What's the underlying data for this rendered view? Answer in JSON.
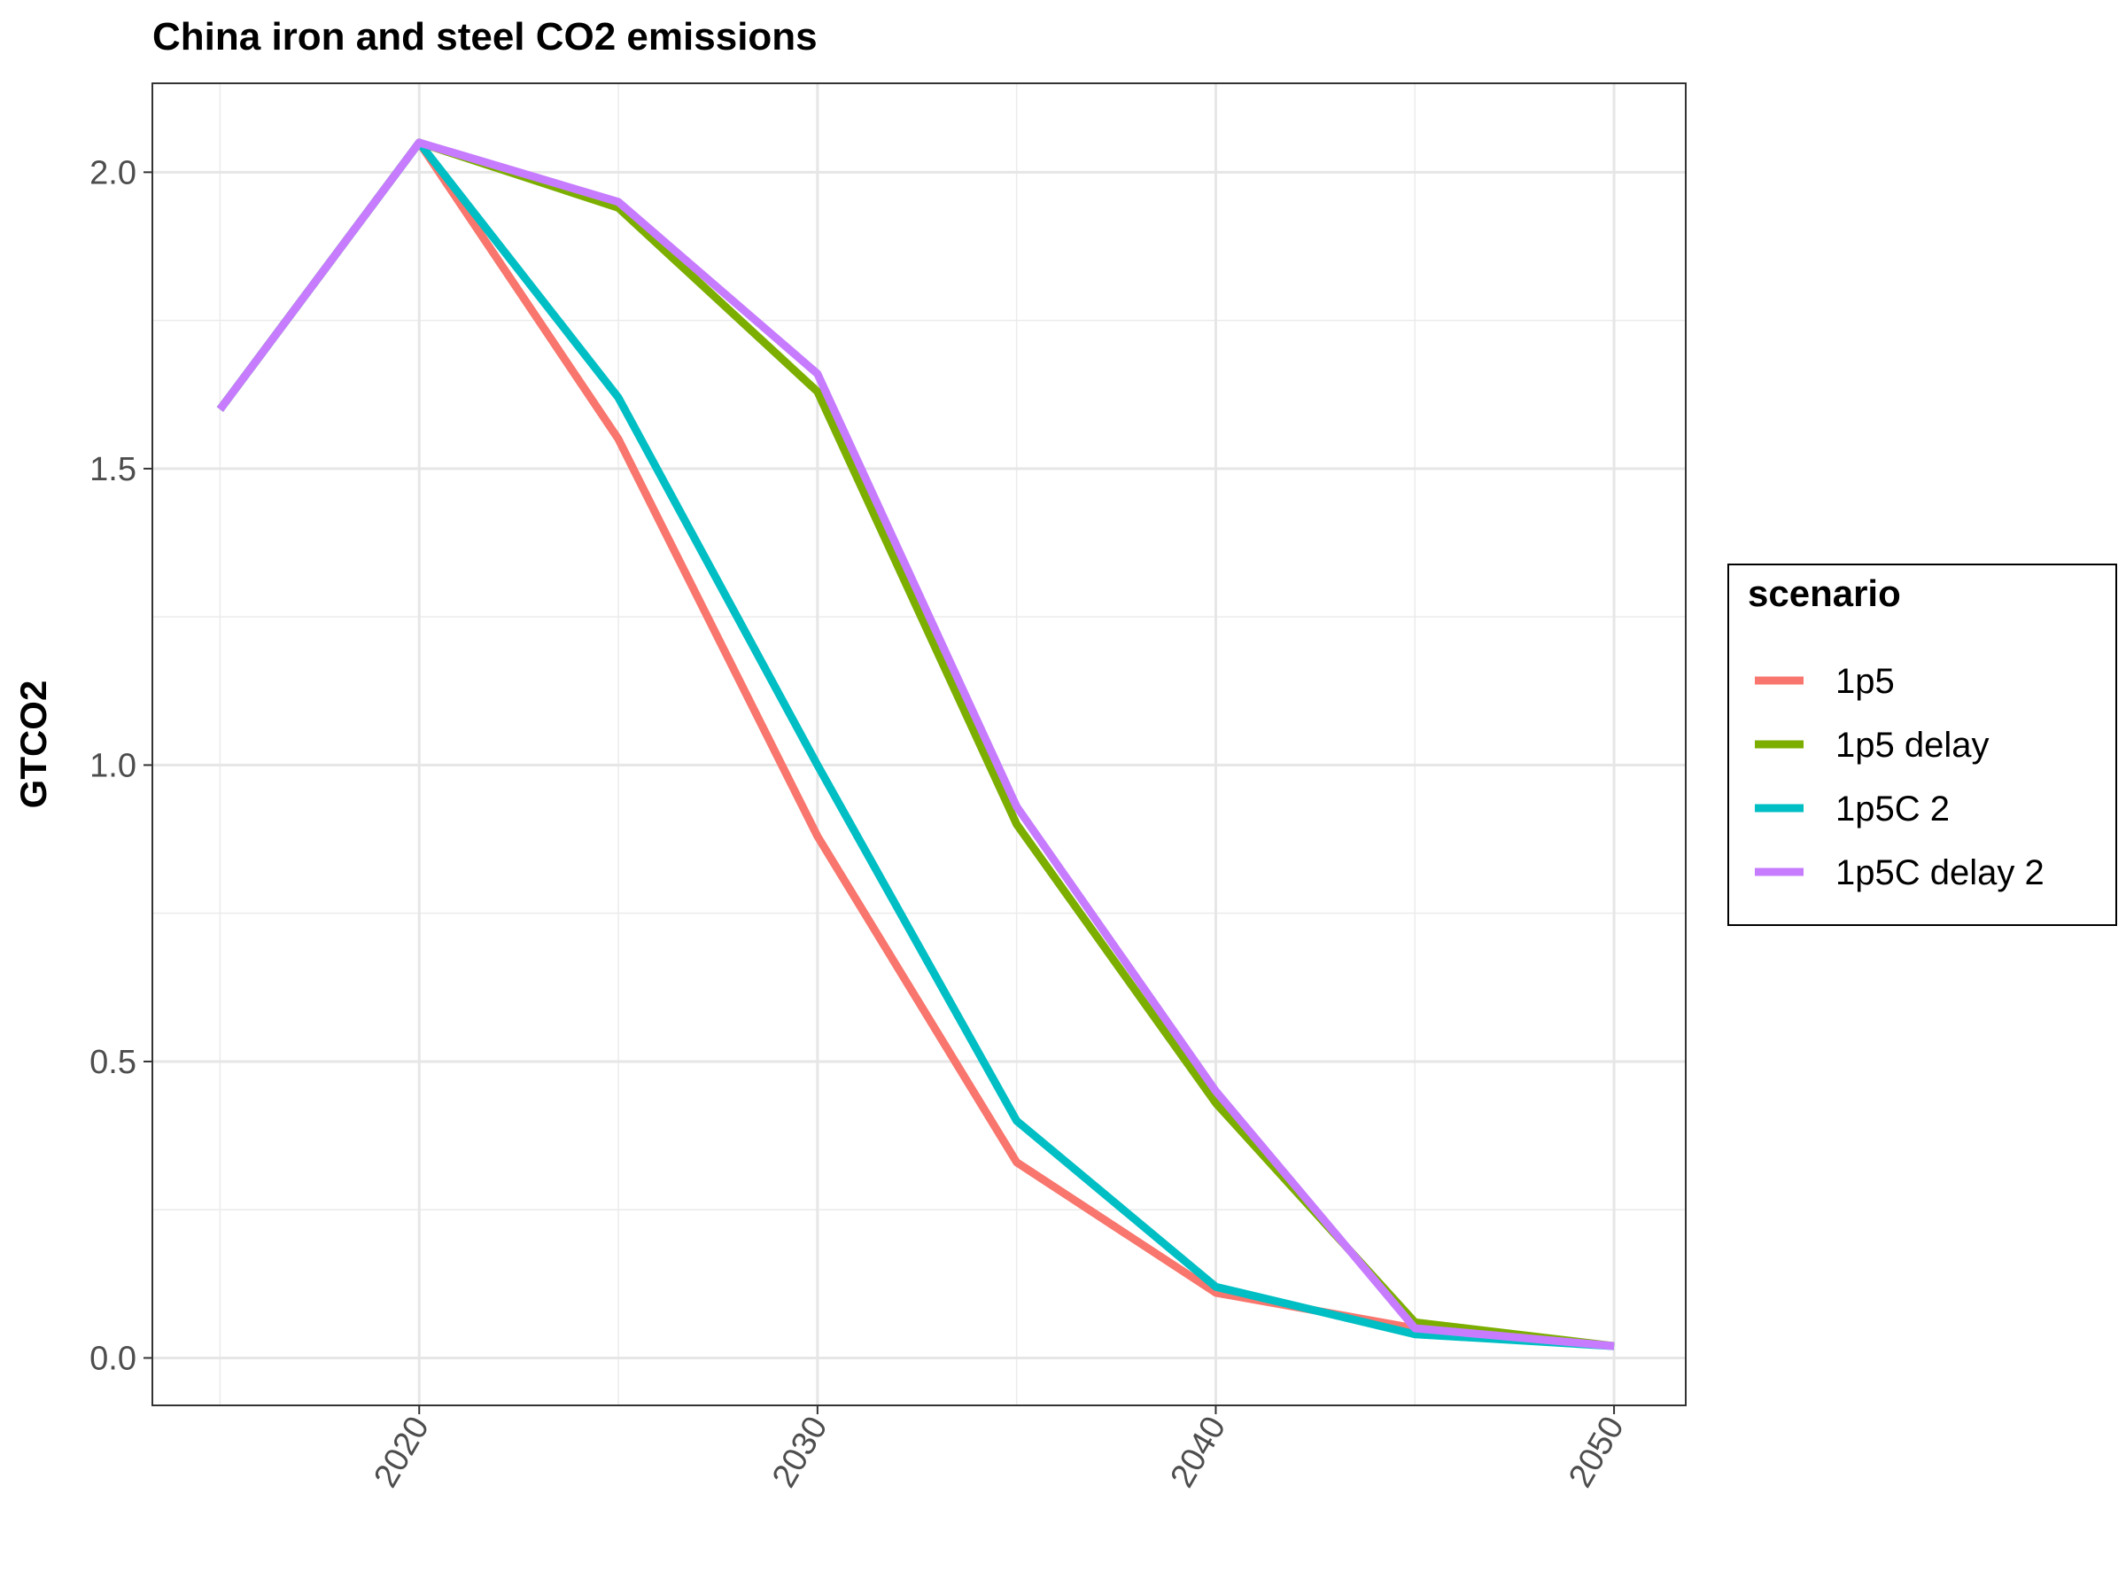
{
  "chart_data": {
    "type": "line",
    "title": "China iron and steel CO2 emissions",
    "xlabel": "",
    "ylabel": "GTCO2",
    "x": [
      2015,
      2020,
      2025,
      2030,
      2035,
      2040,
      2045,
      2050
    ],
    "xlim": [
      2013.3,
      2051.8
    ],
    "ylim": [
      -0.08,
      2.15
    ],
    "x_ticks": [
      2020,
      2030,
      2040,
      2050
    ],
    "y_ticks": [
      0.0,
      0.5,
      1.0,
      1.5,
      2.0
    ],
    "y_tick_labels": [
      "0.0",
      "0.5",
      "1.0",
      "1.5",
      "2.0"
    ],
    "grid": true,
    "legend": {
      "title": "scenario",
      "position": "right"
    },
    "series": [
      {
        "name": "1p5",
        "color": "#F8766D",
        "values": [
          1.6,
          2.05,
          1.55,
          0.88,
          0.33,
          0.11,
          0.05,
          0.02
        ]
      },
      {
        "name": "1p5 delay",
        "color": "#7CAE00",
        "values": [
          1.6,
          2.05,
          1.94,
          1.63,
          0.9,
          0.43,
          0.06,
          0.02
        ]
      },
      {
        "name": "1p5C 2",
        "color": "#00BFC4",
        "values": [
          1.6,
          2.05,
          1.62,
          1.0,
          0.4,
          0.12,
          0.04,
          0.02
        ]
      },
      {
        "name": "1p5C delay 2",
        "color": "#C77CFF",
        "values": [
          1.6,
          2.05,
          1.95,
          1.66,
          0.93,
          0.45,
          0.05,
          0.02
        ]
      }
    ]
  }
}
